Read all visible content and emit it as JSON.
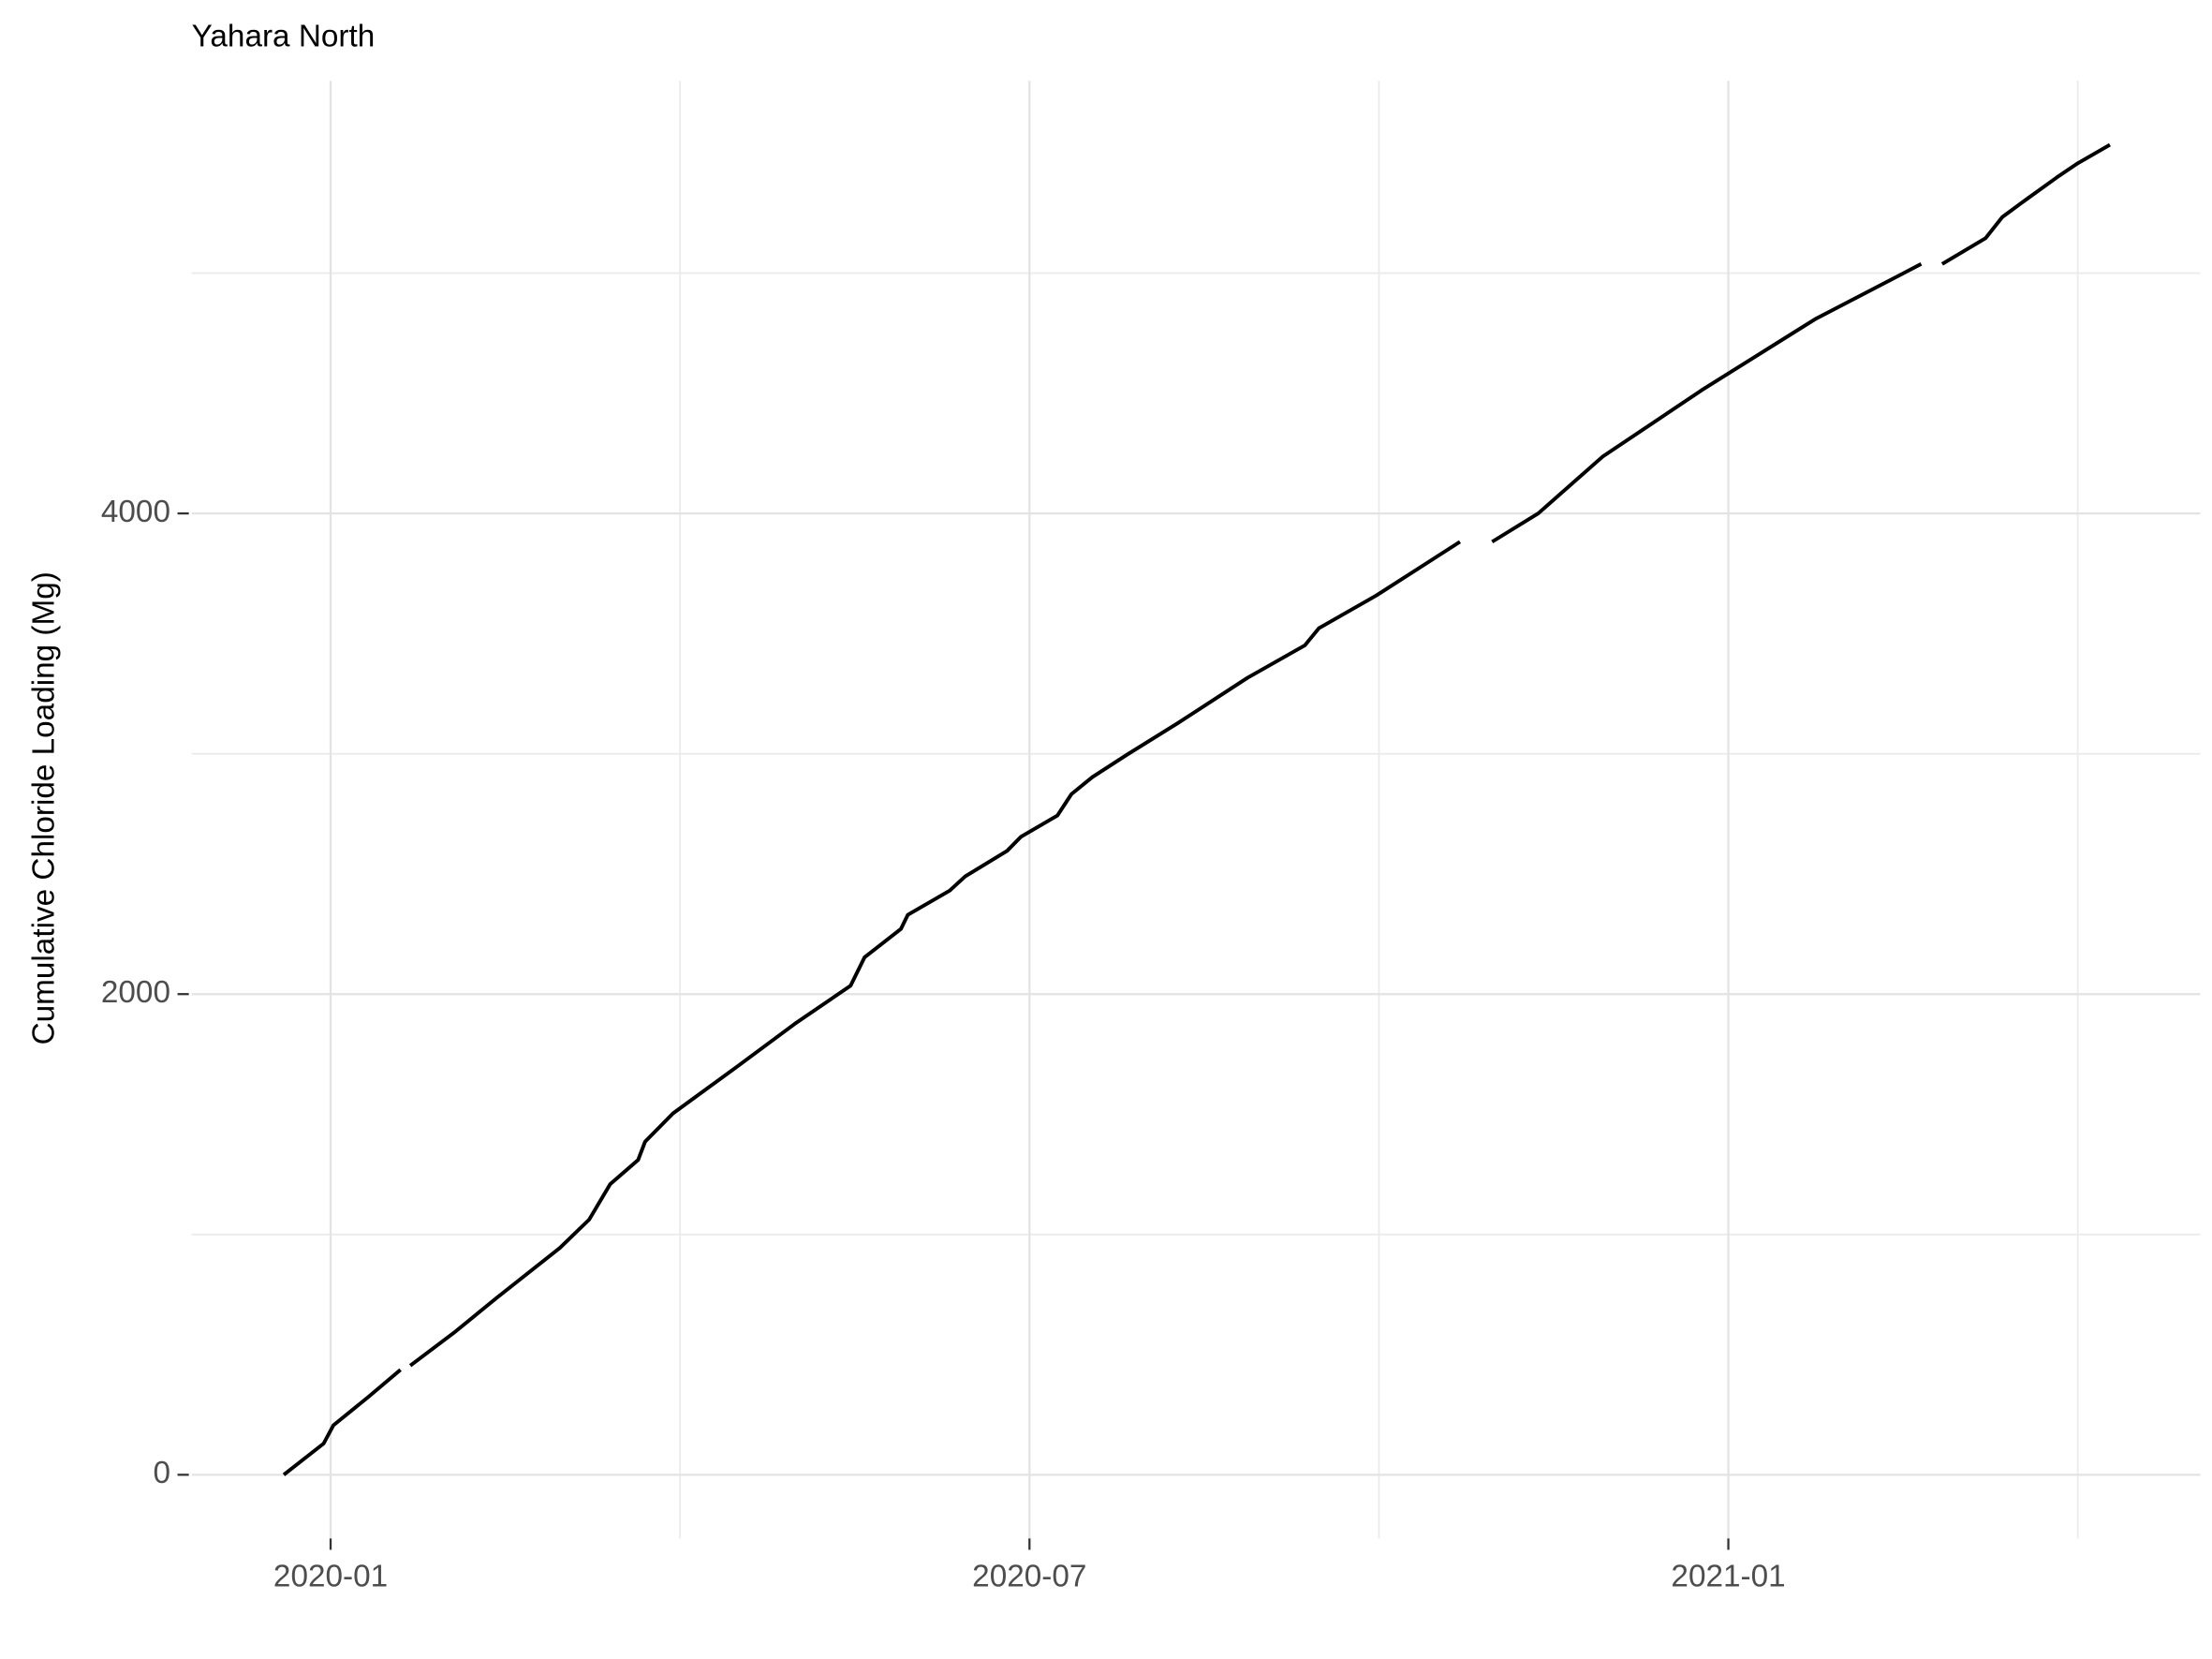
{
  "chart_data": {
    "type": "line",
    "title": "Yahara North",
    "ylabel": "Cumulative Chloride Loading (Mg)",
    "x": [
      2019.9665,
      2019.995,
      2020.002,
      2020.027,
      2020.05,
      null,
      2020.057,
      2020.088,
      2020.119,
      2020.164,
      2020.185,
      2020.2,
      2020.22,
      2020.225,
      2020.245,
      2020.291,
      2020.332,
      2020.372,
      2020.382,
      2020.408,
      2020.413,
      2020.443,
      2020.454,
      2020.484,
      2020.494,
      2020.52,
      2020.53,
      2020.545,
      2020.57,
      2020.606,
      2020.656,
      2020.697,
      2020.707,
      2020.748,
      2020.808,
      null,
      2020.831,
      2020.864,
      2020.91,
      2020.981,
      2021.062,
      2021.138,
      null,
      2021.153,
      2021.184,
      2021.196,
      2021.214,
      2021.235,
      2021.25,
      2021.273
    ],
    "series": [
      {
        "color": "#000000",
        "values": [
          0,
          130,
          206,
          324,
          437,
          null,
          454,
          590,
          737,
          944,
          1062,
          1209,
          1310,
          1386,
          1504,
          1699,
          1876,
          2035,
          2153,
          2271,
          2330,
          2431,
          2490,
          2596,
          2655,
          2743,
          2832,
          2903,
          2997,
          3127,
          3316,
          3451,
          3522,
          3658,
          3882,
          null,
          3882,
          4000,
          4236,
          4513,
          4808,
          5038,
          null,
          5038,
          5145,
          5233,
          5310,
          5398,
          5457,
          5534
        ]
      }
    ],
    "xlim": [
      2019.9006,
      2021.3377
    ],
    "xticks": [
      {
        "value": 2020.0,
        "label": "2020-01"
      },
      {
        "value": 2020.5,
        "label": "2020-07"
      },
      {
        "value": 2021.0,
        "label": "2021-01"
      }
    ],
    "x_minor_ticks": [
      2020.25,
      2020.75,
      2021.25
    ],
    "ylim": [
      -265,
      5800
    ],
    "yticks": [
      0,
      2000,
      4000
    ],
    "y_minor_ticks": [
      1000,
      3000,
      5000
    ],
    "grid": true
  }
}
